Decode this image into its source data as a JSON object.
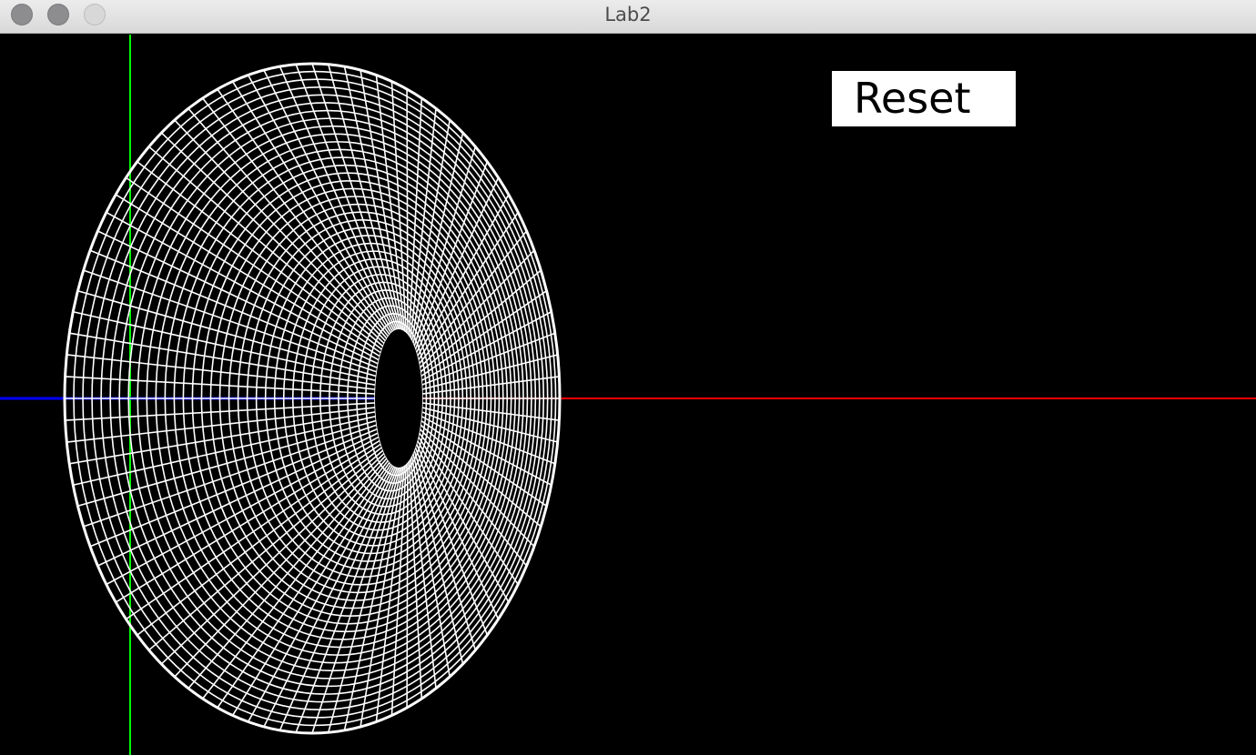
{
  "window": {
    "title": "Lab2",
    "controls": [
      "close",
      "minimize",
      "zoom"
    ]
  },
  "toolbar": {
    "reset_label": "Reset"
  },
  "viewport": {
    "background": "#000000",
    "axis_colors": {
      "x": "#ff0000",
      "y": "#00ff00",
      "z": "#0000ff"
    },
    "mesh_color": "#ffffff"
  }
}
